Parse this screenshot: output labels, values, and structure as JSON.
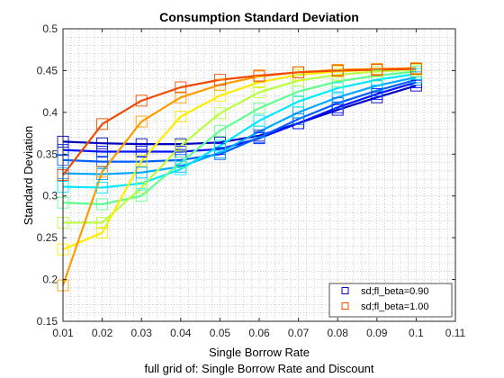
{
  "chart_data": {
    "type": "line",
    "title": "Consumption Standard Deviation",
    "xlabel": "Single Borrow Rate",
    "ylabel": "Standard Deviation",
    "subtitle": "full grid of: Single Borrow Rate and Discount",
    "xlim": [
      0.01,
      0.11
    ],
    "ylim": [
      0.15,
      0.5
    ],
    "xticks": [
      "0.01",
      "0.02",
      "0.03",
      "0.04",
      "0.05",
      "0.06",
      "0.07",
      "0.08",
      "0.09",
      "0.1",
      "0.11"
    ],
    "yticks": [
      "0.15",
      "0.2",
      "0.25",
      "0.3",
      "0.35",
      "0.4",
      "0.45",
      "0.5"
    ],
    "grid": "minor dotted",
    "legend_position": "bottom-right",
    "x": [
      0.01,
      0.02,
      0.03,
      0.04,
      0.05,
      0.06,
      0.07,
      0.08,
      0.09,
      0.1
    ],
    "series": [
      {
        "name": "sd;fl_beta=0.90",
        "color": "#0000bf",
        "marker": true,
        "values": [
          0.365,
          0.363,
          0.362,
          0.362,
          0.364,
          0.372,
          0.387,
          0.403,
          0.418,
          0.432
        ]
      },
      {
        "color": "#0012ff",
        "values": [
          0.355,
          0.353,
          0.353,
          0.353,
          0.356,
          0.369,
          0.387,
          0.406,
          0.422,
          0.436
        ]
      },
      {
        "color": "#0060ff",
        "values": [
          0.343,
          0.341,
          0.341,
          0.343,
          0.35,
          0.37,
          0.392,
          0.411,
          0.426,
          0.439
        ]
      },
      {
        "color": "#00a8ff",
        "values": [
          0.327,
          0.326,
          0.328,
          0.335,
          0.352,
          0.377,
          0.4,
          0.418,
          0.432,
          0.442
        ]
      },
      {
        "color": "#00eaff",
        "values": [
          0.311,
          0.31,
          0.315,
          0.332,
          0.36,
          0.39,
          0.413,
          0.429,
          0.439,
          0.446
        ]
      },
      {
        "color": "#60ff90",
        "values": [
          0.292,
          0.29,
          0.3,
          0.34,
          0.378,
          0.405,
          0.425,
          0.437,
          0.444,
          0.449
        ]
      },
      {
        "color": "#b8ff40",
        "values": [
          0.268,
          0.268,
          0.31,
          0.36,
          0.399,
          0.424,
          0.438,
          0.445,
          0.449,
          0.451
        ]
      },
      {
        "color": "#ffec00",
        "values": [
          0.236,
          0.256,
          0.342,
          0.395,
          0.42,
          0.436,
          0.445,
          0.449,
          0.451,
          0.452
        ]
      },
      {
        "color": "#ff9b00",
        "values": [
          0.193,
          0.329,
          0.389,
          0.418,
          0.433,
          0.443,
          0.448,
          0.451,
          0.452,
          0.453
        ]
      },
      {
        "name": "sd;fl_beta=1.00",
        "color": "#f04a00",
        "marker": true,
        "values": [
          0.325,
          0.386,
          0.414,
          0.43,
          0.439,
          0.444,
          0.448,
          0.45,
          0.451,
          0.452
        ]
      }
    ]
  }
}
